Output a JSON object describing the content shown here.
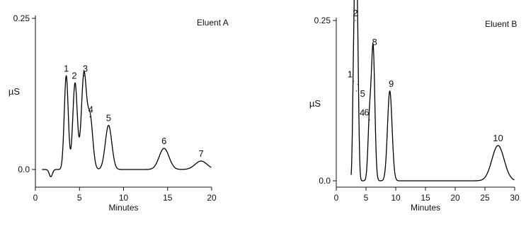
{
  "chart_data": [
    {
      "type": "line",
      "panel_label": "Eluent A",
      "xlabel": "Minutes",
      "ylabel": "µS",
      "xlim": [
        0,
        20
      ],
      "ylim": [
        0,
        0.25
      ],
      "x_ticks": [
        "0",
        "5",
        "10",
        "15",
        "20"
      ],
      "y_ticks": [
        "0.0",
        "0.25"
      ],
      "baseline_start": 0.75,
      "peaks": [
        {
          "label": "1",
          "time": 3.5,
          "height": 0.155
        },
        {
          "label": "2",
          "time": 4.5,
          "height": 0.143
        },
        {
          "label": "3",
          "time": 5.5,
          "height": 0.155
        },
        {
          "label": "4",
          "time": 6.2,
          "height": 0.087
        },
        {
          "label": "5",
          "time": 8.3,
          "height": 0.073
        },
        {
          "label": "6",
          "time": 14.6,
          "height": 0.035
        },
        {
          "label": "7",
          "time": 18.8,
          "height": 0.014
        }
      ]
    },
    {
      "type": "line",
      "panel_label": "Eluent B",
      "xlabel": "Minutes",
      "ylabel": "µS",
      "xlim": [
        0,
        30
      ],
      "ylim": [
        0,
        0.25
      ],
      "x_ticks": [
        "0",
        "5",
        "10",
        "15",
        "20",
        "25",
        "30"
      ],
      "y_ticks": [
        "0.0",
        "0.25"
      ],
      "baseline_start": 2.5,
      "peaks": [
        {
          "label": "1",
          "time": 2.9,
          "height": 0.155
        },
        {
          "label": "2",
          "time": 3.2,
          "height": 0.25
        },
        {
          "label": "5",
          "time": 3.6,
          "height": 0.15
        },
        {
          "label": "4",
          "time": 3.4,
          "height": 0.14
        },
        {
          "label": "6",
          "time": 5.6,
          "height": 0.095
        },
        {
          "label": "8",
          "time": 6.2,
          "height": 0.205
        },
        {
          "label": "9",
          "time": 9.0,
          "height": 0.14
        },
        {
          "label": "10",
          "time": 27.2,
          "height": 0.055
        }
      ]
    }
  ]
}
